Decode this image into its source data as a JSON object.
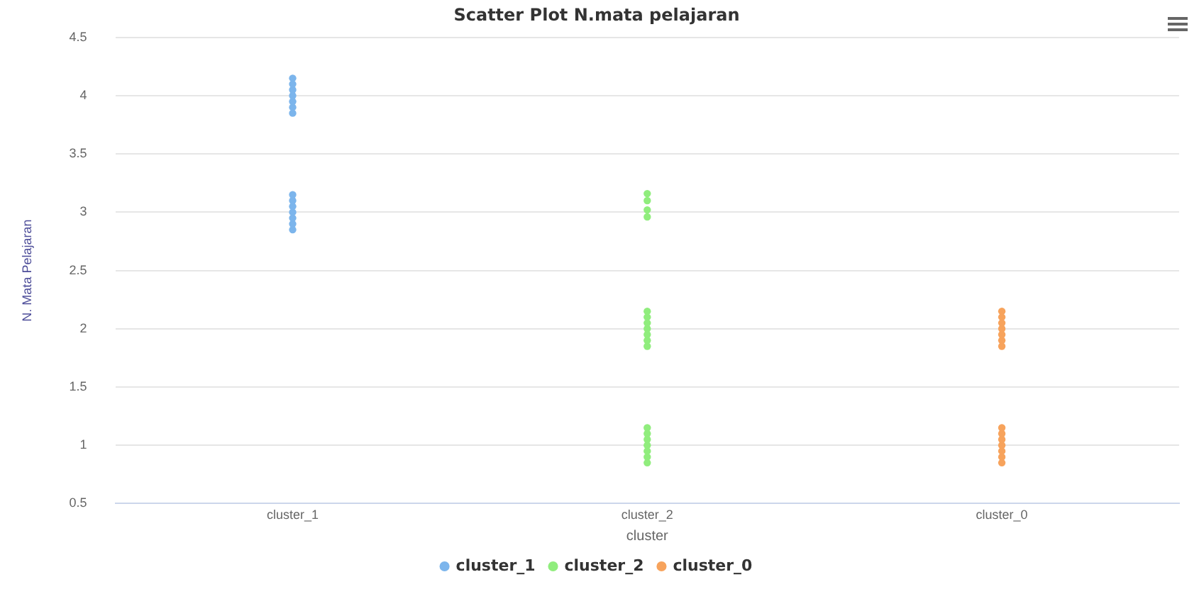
{
  "chart_data": {
    "type": "scatter",
    "title": "Scatter Plot N.mata pelajaran",
    "xlabel": "cluster",
    "ylabel": "N. Mata Pelajaran",
    "categories": [
      "cluster_1",
      "cluster_2",
      "cluster_0"
    ],
    "ylim": [
      0.5,
      4.5
    ],
    "yticks": [
      0.5,
      1,
      1.5,
      2,
      2.5,
      3,
      3.5,
      4,
      4.5
    ],
    "grid": "y",
    "legend": "bottom",
    "marker": "circle",
    "series": [
      {
        "name": "cluster_1",
        "color": "#7cb5ec",
        "x": [
          "cluster_1",
          "cluster_1",
          "cluster_1",
          "cluster_1",
          "cluster_1",
          "cluster_1",
          "cluster_1",
          "cluster_1",
          "cluster_1",
          "cluster_1",
          "cluster_1",
          "cluster_1",
          "cluster_1",
          "cluster_1"
        ],
        "values": [
          3.85,
          3.9,
          3.95,
          4.0,
          4.05,
          4.1,
          4.15,
          2.85,
          2.9,
          2.95,
          3.0,
          3.05,
          3.1,
          3.15
        ]
      },
      {
        "name": "cluster_2",
        "color": "#90ed7d",
        "x": [
          "cluster_2",
          "cluster_2",
          "cluster_2",
          "cluster_2",
          "cluster_2",
          "cluster_2",
          "cluster_2",
          "cluster_2",
          "cluster_2",
          "cluster_2",
          "cluster_2",
          "cluster_2",
          "cluster_2",
          "cluster_2",
          "cluster_2",
          "cluster_2",
          "cluster_2",
          "cluster_2"
        ],
        "values": [
          3.16,
          2.96,
          3.1,
          3.02,
          1.85,
          1.9,
          1.95,
          2.0,
          2.05,
          2.1,
          2.15,
          0.85,
          0.9,
          0.95,
          1.0,
          1.05,
          1.1,
          1.15
        ]
      },
      {
        "name": "cluster_0",
        "color": "#f7a35c",
        "x": [
          "cluster_0",
          "cluster_0",
          "cluster_0",
          "cluster_0",
          "cluster_0",
          "cluster_0",
          "cluster_0",
          "cluster_0",
          "cluster_0",
          "cluster_0",
          "cluster_0",
          "cluster_0",
          "cluster_0",
          "cluster_0"
        ],
        "values": [
          1.85,
          1.9,
          1.95,
          2.0,
          2.05,
          2.1,
          2.15,
          0.85,
          0.9,
          0.95,
          1.0,
          1.05,
          1.1,
          1.15
        ]
      }
    ]
  }
}
